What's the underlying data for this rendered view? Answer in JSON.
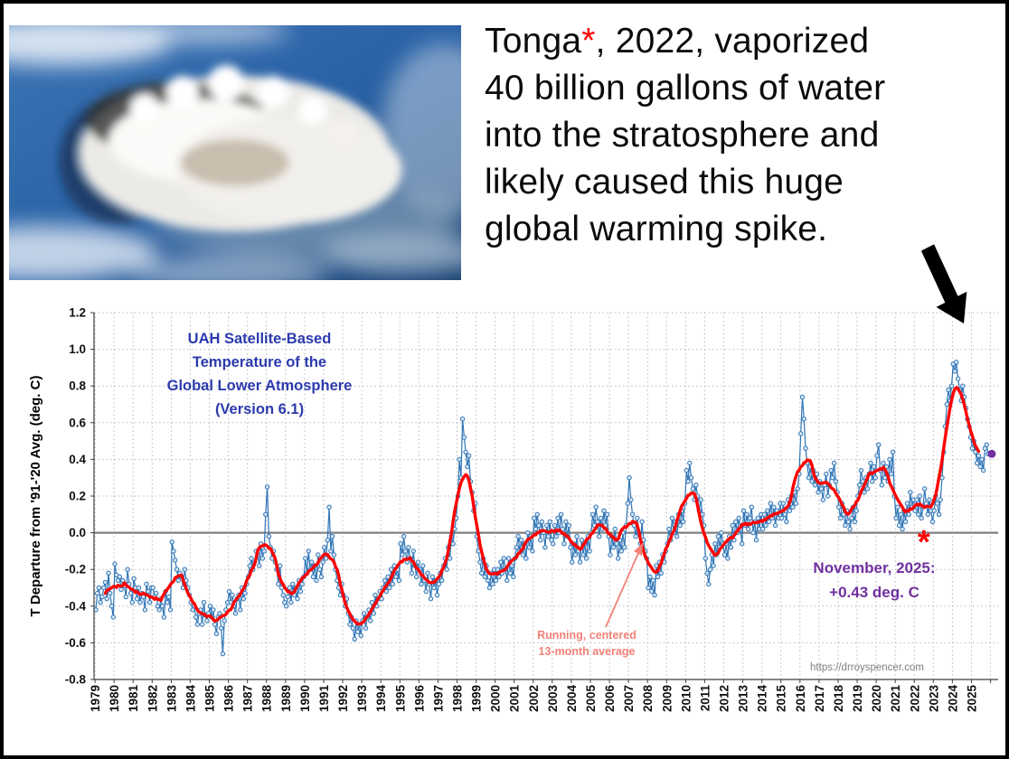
{
  "header": {
    "headline": {
      "line1_prefix": "Tonga",
      "asterisk": "*",
      "asterisk_color": "#ff0000",
      "line1_suffix": ", 2022, vaporized",
      "line2": "40 billion gallons of water",
      "line3": "into the stratosphere and",
      "line4": "likely caused this huge",
      "line5": "global warming spike."
    },
    "image_description": "satellite view of Tonga volcanic eruption plume over blue ocean"
  },
  "chart_data": {
    "type": "line",
    "title_lines": [
      "UAH Satellite-Based",
      "Temperature of the",
      "Global Lower Atmosphere",
      "(Version 6.1)"
    ],
    "title_color": "#2b3aad",
    "ylabel": "T Departure from '91-'20 Avg. (deg. C)",
    "ylim": [
      -0.8,
      1.2
    ],
    "ytick_step": 0.2,
    "y_tick_labels": [
      "1.2",
      "1.0",
      "0.8",
      "0.6",
      "0.4",
      "0.2",
      "0.0",
      "-0.2",
      "-0.4",
      "-0.6",
      "-0.8"
    ],
    "x_start": "1979-01",
    "x_end": "2025-11",
    "x_tick_labels": [
      "1979",
      "1980",
      "1981",
      "1982",
      "1983",
      "1984",
      "1985",
      "1986",
      "1987",
      "1988",
      "1989",
      "1990",
      "1991",
      "1992",
      "1993",
      "1994",
      "1995",
      "1996",
      "1997",
      "1998",
      "1999",
      "2000",
      "2001",
      "2002",
      "2003",
      "2004",
      "2005",
      "2006",
      "2007",
      "2008",
      "2009",
      "2010",
      "2011",
      "2012",
      "2013",
      "2014",
      "2015",
      "2016",
      "2017",
      "2018",
      "2019",
      "2020",
      "2021",
      "2022",
      "2023",
      "2024",
      "2025"
    ],
    "grid": true,
    "colors": {
      "monthly_line": "#2e74b5",
      "monthly_marker_fill": "#d9e7f5",
      "running_average": "#ff0000",
      "zero_line": "#808080",
      "grid": "#b9b9b9",
      "axis": "#3f3f3f"
    },
    "series": [
      {
        "name": "Monthly global lower-atmosphere temperature anomaly",
        "color": "#2e74b5",
        "marker": "circle",
        "monthly_values": [
          -0.42,
          -0.33,
          -0.3,
          -0.38,
          -0.35,
          -0.3,
          -0.27,
          -0.36,
          -0.22,
          -0.33,
          -0.4,
          -0.46,
          -0.17,
          -0.23,
          -0.26,
          -0.24,
          -0.31,
          -0.26,
          -0.29,
          -0.35,
          -0.2,
          -0.28,
          -0.33,
          -0.38,
          -0.25,
          -0.3,
          -0.36,
          -0.3,
          -0.38,
          -0.33,
          -0.35,
          -0.42,
          -0.28,
          -0.32,
          -0.38,
          -0.3,
          -0.3,
          -0.35,
          -0.33,
          -0.4,
          -0.42,
          -0.36,
          -0.4,
          -0.46,
          -0.32,
          -0.38,
          -0.35,
          -0.42,
          -0.05,
          -0.1,
          -0.15,
          -0.2,
          -0.26,
          -0.22,
          -0.24,
          -0.3,
          -0.2,
          -0.26,
          -0.3,
          -0.34,
          -0.38,
          -0.42,
          -0.4,
          -0.46,
          -0.5,
          -0.44,
          -0.42,
          -0.5,
          -0.38,
          -0.45,
          -0.48,
          -0.44,
          -0.4,
          -0.46,
          -0.42,
          -0.5,
          -0.55,
          -0.46,
          -0.44,
          -0.52,
          -0.66,
          -0.48,
          -0.42,
          -0.38,
          -0.32,
          -0.38,
          -0.34,
          -0.4,
          -0.44,
          -0.36,
          -0.34,
          -0.42,
          -0.3,
          -0.36,
          -0.33,
          -0.28,
          -0.24,
          -0.18,
          -0.14,
          -0.2,
          -0.16,
          -0.1,
          -0.12,
          -0.18,
          -0.06,
          -0.14,
          -0.1,
          0.1,
          0.25,
          -0.02,
          -0.08,
          -0.14,
          -0.1,
          -0.16,
          -0.2,
          -0.28,
          -0.18,
          -0.3,
          -0.34,
          -0.38,
          -0.4,
          -0.35,
          -0.3,
          -0.38,
          -0.28,
          -0.34,
          -0.3,
          -0.36,
          -0.26,
          -0.32,
          -0.28,
          -0.24,
          -0.14,
          -0.22,
          -0.1,
          -0.2,
          -0.16,
          -0.24,
          -0.18,
          -0.26,
          -0.12,
          -0.2,
          -0.24,
          -0.16,
          -0.08,
          -0.14,
          -0.04,
          0.14,
          -0.1,
          -0.02,
          -0.12,
          -0.2,
          -0.26,
          -0.3,
          -0.34,
          -0.28,
          -0.34,
          -0.4,
          -0.36,
          -0.44,
          -0.5,
          -0.46,
          -0.52,
          -0.58,
          -0.48,
          -0.54,
          -0.5,
          -0.56,
          -0.48,
          -0.44,
          -0.52,
          -0.46,
          -0.42,
          -0.48,
          -0.38,
          -0.44,
          -0.34,
          -0.4,
          -0.36,
          -0.32,
          -0.36,
          -0.3,
          -0.26,
          -0.32,
          -0.24,
          -0.3,
          -0.2,
          -0.28,
          -0.18,
          -0.24,
          -0.2,
          -0.26,
          -0.06,
          -0.12,
          -0.02,
          -0.1,
          -0.16,
          -0.08,
          -0.14,
          -0.22,
          -0.1,
          -0.18,
          -0.24,
          -0.16,
          -0.2,
          -0.28,
          -0.18,
          -0.26,
          -0.32,
          -0.22,
          -0.28,
          -0.36,
          -0.24,
          -0.3,
          -0.26,
          -0.34,
          -0.28,
          -0.22,
          -0.26,
          -0.18,
          -0.14,
          -0.2,
          -0.08,
          -0.14,
          -0.02,
          -0.06,
          0.02,
          0.08,
          0.2,
          0.4,
          0.3,
          0.62,
          0.52,
          0.44,
          0.36,
          0.42,
          0.28,
          0.22,
          0.12,
          0.16,
          -0.02,
          -0.1,
          -0.16,
          -0.22,
          -0.14,
          -0.24,
          -0.18,
          -0.26,
          -0.3,
          -0.22,
          -0.28,
          -0.2,
          -0.26,
          -0.2,
          -0.24,
          -0.16,
          -0.22,
          -0.14,
          -0.2,
          -0.26,
          -0.14,
          -0.22,
          -0.18,
          -0.24,
          -0.14,
          -0.08,
          -0.02,
          -0.1,
          -0.04,
          -0.12,
          -0.06,
          -0.14,
          0.0,
          -0.08,
          -0.02,
          -0.1,
          0.08,
          0.02,
          0.1,
          0.04,
          -0.04,
          0.06,
          0.0,
          -0.08,
          0.04,
          -0.02,
          0.06,
          -0.04,
          -0.06,
          0.04,
          -0.02,
          0.08,
          0.0,
          0.1,
          0.02,
          -0.06,
          0.06,
          -0.02,
          0.04,
          -0.08,
          -0.16,
          -0.06,
          -0.12,
          -0.02,
          -0.1,
          -0.16,
          -0.04,
          -0.12,
          -0.06,
          -0.14,
          -0.02,
          -0.1,
          0.0,
          0.1,
          0.04,
          0.14,
          0.06,
          -0.02,
          0.08,
          0.02,
          0.12,
          0.04,
          0.1,
          -0.02,
          -0.12,
          -0.02,
          -0.08,
          0.02,
          -0.06,
          -0.14,
          -0.04,
          -0.1,
          0.0,
          -0.08,
          0.04,
          0.16,
          0.3,
          0.18,
          0.1,
          0.04,
          -0.02,
          0.08,
          0.0,
          -0.06,
          0.06,
          -0.04,
          -0.1,
          -0.14,
          -0.3,
          -0.24,
          -0.32,
          -0.26,
          -0.34,
          -0.18,
          -0.24,
          -0.16,
          -0.22,
          -0.12,
          -0.16,
          -0.1,
          -0.06,
          0.02,
          -0.04,
          0.08,
          0.0,
          0.06,
          -0.02,
          0.1,
          0.04,
          0.12,
          0.06,
          0.16,
          0.34,
          0.28,
          0.38,
          0.3,
          0.24,
          0.18,
          0.26,
          0.2,
          0.12,
          0.18,
          0.1,
          0.04,
          -0.14,
          -0.22,
          -0.28,
          -0.2,
          -0.12,
          -0.18,
          -0.06,
          -0.12,
          -0.02,
          -0.08,
          0.0,
          -0.06,
          -0.12,
          -0.06,
          -0.14,
          -0.02,
          -0.08,
          0.04,
          -0.04,
          0.06,
          0.0,
          0.08,
          0.02,
          -0.06,
          0.12,
          0.04,
          0.1,
          0.02,
          0.08,
          0.14,
          0.0,
          0.06,
          -0.04,
          0.08,
          0.02,
          0.1,
          0.02,
          0.1,
          0.04,
          0.12,
          0.06,
          0.16,
          0.08,
          0.14,
          0.04,
          0.12,
          0.08,
          0.16,
          0.08,
          0.16,
          0.1,
          0.06,
          0.18,
          0.12,
          0.2,
          0.14,
          0.22,
          0.16,
          0.24,
          0.32,
          0.54,
          0.74,
          0.62,
          0.46,
          0.38,
          0.3,
          0.36,
          0.28,
          0.34,
          0.26,
          0.32,
          0.22,
          0.28,
          0.24,
          0.18,
          0.26,
          0.32,
          0.2,
          0.26,
          0.34,
          0.3,
          0.38,
          0.28,
          0.22,
          0.14,
          0.08,
          0.16,
          0.1,
          0.04,
          0.12,
          0.06,
          0.02,
          0.08,
          0.14,
          0.06,
          0.12,
          0.2,
          0.26,
          0.34,
          0.28,
          0.22,
          0.3,
          0.24,
          0.32,
          0.38,
          0.28,
          0.36,
          0.3,
          0.42,
          0.48,
          0.34,
          0.26,
          0.38,
          0.3,
          0.36,
          0.28,
          0.4,
          0.32,
          0.44,
          0.2,
          0.08,
          0.14,
          0.04,
          0.1,
          0.02,
          0.12,
          0.06,
          0.16,
          0.1,
          0.22,
          0.14,
          0.18,
          0.12,
          0.18,
          0.1,
          0.2,
          0.08,
          0.14,
          0.24,
          0.16,
          0.1,
          0.18,
          0.12,
          0.06,
          0.12,
          0.2,
          0.16,
          0.1,
          0.18,
          0.3,
          0.44,
          0.58,
          0.7,
          0.78,
          0.72,
          0.8,
          0.92,
          0.88,
          0.93,
          0.84,
          0.78,
          0.72,
          0.8,
          0.74,
          0.68,
          0.62,
          0.58,
          0.52,
          0.46,
          0.5,
          0.44,
          0.38,
          0.42,
          0.36,
          0.4,
          0.34,
          0.46,
          0.48,
          0.43
        ]
      },
      {
        "name": "Running, centered 13-month average",
        "color": "#ff0000",
        "derived": "13-month centered mean of monthly values"
      }
    ],
    "annotations": {
      "running_label_lines": [
        "Running, centered",
        "13-month average"
      ],
      "running_label_color": "#f28177",
      "november_lines": [
        "November, 2025:",
        "+0.43 deg. C"
      ],
      "november_color": "#7030a0",
      "footer_url": "https://drroyspencer.com",
      "footer_url_color": "#7f7f7f",
      "tonga_asterisk": {
        "text": "*",
        "color": "#ff0000",
        "x_year": 2022.5,
        "y_value": -0.08
      },
      "latest_point": {
        "label": "November 2025",
        "value": 0.43,
        "color": "#7030a0"
      }
    }
  }
}
